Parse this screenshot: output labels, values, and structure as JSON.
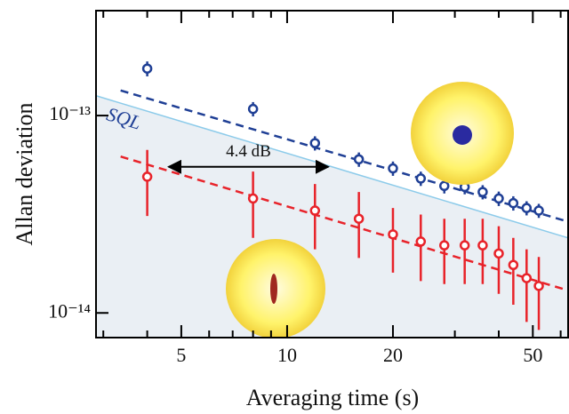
{
  "chart_data": {
    "type": "scatter",
    "xlabel": "Averaging time (s)",
    "ylabel": "Allan deviation",
    "log_x": true,
    "log_y": true,
    "xlim": [
      2.86,
      63
    ],
    "ylim": [
      7.5e-15,
      3.4e-13
    ],
    "xticks": [
      5,
      10,
      20,
      50
    ],
    "xminor": [
      3,
      4,
      6,
      7,
      8,
      9,
      30,
      40,
      60
    ],
    "yticks": [
      {
        "value": 1e-13,
        "label": "10⁻¹³"
      },
      {
        "value": 1e-14,
        "label": "10⁻¹⁴"
      }
    ],
    "series": [
      {
        "color": "#1f3f95",
        "x": [
          4,
          8,
          12,
          16,
          20,
          24,
          28,
          32,
          36,
          40,
          44,
          48,
          52
        ],
        "values": [
          1.73e-13,
          1.08e-13,
          7.25e-14,
          6e-14,
          5.4e-14,
          4.8e-14,
          4.4e-14,
          4.35e-14,
          4.1e-14,
          3.8e-14,
          3.6e-14,
          3.4e-14,
          3.3e-14
        ],
        "errors": [
          1.5e-14,
          9e-15,
          6e-15,
          5e-15,
          4.5e-15,
          4e-15,
          3.7e-15,
          3.6e-15,
          3.4e-15,
          3.2e-15,
          3e-15,
          2.8e-15,
          2.7e-15
        ]
      },
      {
        "color": "#e8232a",
        "x": [
          4,
          8,
          12,
          16,
          20,
          24,
          28,
          32,
          36,
          40,
          44,
          48,
          52
        ],
        "values": [
          4.9e-14,
          3.8e-14,
          3.3e-14,
          3e-14,
          2.5e-14,
          2.3e-14,
          2.2e-14,
          2.2e-14,
          2.2e-14,
          2e-14,
          1.75e-14,
          1.5e-14,
          1.37e-14
        ],
        "errors": [
          1.8e-14,
          1.4e-14,
          1.2e-14,
          1.1e-14,
          9e-15,
          8.5e-15,
          8e-15,
          8e-15,
          8e-15,
          7.5e-15,
          6.5e-15,
          6e-15,
          5.5e-15
        ]
      }
    ],
    "lines": [
      {
        "name": "SQL",
        "color": "#8ccbea",
        "dashed": false,
        "fill": "#eaeff4",
        "x": [
          2.86,
          63
        ],
        "values": [
          1.26e-13,
          2.4e-14
        ]
      },
      {
        "color": "#1f3f95",
        "dashed": true,
        "x": [
          3.36,
          63
        ],
        "values": [
          1.34e-13,
          2.9e-14
        ]
      },
      {
        "color": "#e8232a",
        "dashed": true,
        "x": [
          3.36,
          63
        ],
        "values": [
          6.2e-14,
          1.3e-14
        ]
      }
    ],
    "annotations": [
      {
        "text": "4.4 dB",
        "x": [
          4.6,
          13.1
        ],
        "y": 5.5e-14
      }
    ]
  }
}
